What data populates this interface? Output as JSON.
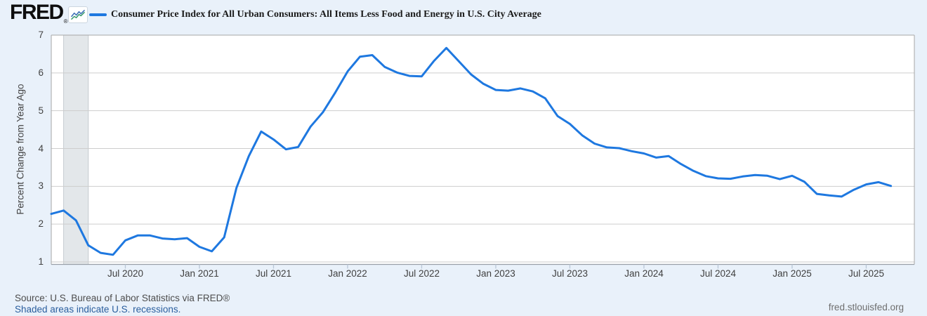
{
  "header": {
    "logo_text": "FRED",
    "logo_reg": "®",
    "series_title": "Consumer Price Index for All Urban Consumers: All Items Less Food and Energy in U.S. City Average"
  },
  "footer": {
    "source_line": "Source: U.S. Bureau of Labor Statistics via FRED®",
    "recession_note": "Shaded areas indicate U.S. recessions.",
    "site_url": "fred.stlouisfed.org"
  },
  "colors": {
    "line": "#1e78e0",
    "page_background": "#e9f1fa",
    "plot_background": "#ffffff",
    "gridline": "#cdcdcd",
    "plot_border": "#a6a6a6",
    "axis_bottom": "#989fa6",
    "tick_mark": "#b9c6d6",
    "recession_band": "#e3e7ea",
    "recession_band_edge": "#c6cbd0",
    "link_blue": "#2a5e9e",
    "axis_text": "#434343"
  },
  "chart_data": {
    "type": "line",
    "title": "Consumer Price Index for All Urban Consumers: All Items Less Food and Energy in U.S. City Average",
    "ylabel": "Percent Change from Year Ago",
    "xlabel": "",
    "legend_position": "top",
    "grid": "horizontal",
    "ylim": [
      0.935,
      7.0
    ],
    "yticks": [
      "7",
      "6",
      "5",
      "4",
      "3",
      "2",
      "1"
    ],
    "xlim_months": [
      0,
      69.9
    ],
    "x_start_label": "Jan 2020",
    "x_end_label": "Sep 2025",
    "xtick_labels": [
      "Jul 2020",
      "Jan 2021",
      "Jul 2021",
      "Jan 2022",
      "Jul 2022",
      "Jan 2023",
      "Jul 2023",
      "Jan 2024",
      "Jul 2024",
      "Jan 2025",
      "Jul 2025"
    ],
    "xtick_month_index": [
      6,
      12,
      18,
      24,
      30,
      36,
      42,
      48,
      54,
      60,
      66
    ],
    "recession_months": [
      1,
      3
    ],
    "recession_label": "Feb 2020 – Apr 2020 U.S. recession",
    "months": [
      "2020-01",
      "2020-02",
      "2020-03",
      "2020-04",
      "2020-05",
      "2020-06",
      "2020-07",
      "2020-08",
      "2020-09",
      "2020-10",
      "2020-11",
      "2020-12",
      "2021-01",
      "2021-02",
      "2021-03",
      "2021-04",
      "2021-05",
      "2021-06",
      "2021-07",
      "2021-08",
      "2021-09",
      "2021-10",
      "2021-11",
      "2021-12",
      "2022-01",
      "2022-02",
      "2022-03",
      "2022-04",
      "2022-05",
      "2022-06",
      "2022-07",
      "2022-08",
      "2022-09",
      "2022-10",
      "2022-11",
      "2022-12",
      "2023-01",
      "2023-02",
      "2023-03",
      "2023-04",
      "2023-05",
      "2023-06",
      "2023-07",
      "2023-08",
      "2023-09",
      "2023-10",
      "2023-11",
      "2023-12",
      "2024-01",
      "2024-02",
      "2024-03",
      "2024-04",
      "2024-05",
      "2024-06",
      "2024-07",
      "2024-08",
      "2024-09",
      "2024-10",
      "2024-11",
      "2024-12",
      "2025-01",
      "2025-02",
      "2025-03",
      "2025-04",
      "2025-05",
      "2025-06",
      "2025-07",
      "2025-08",
      "2025-09"
    ],
    "values": [
      2.27,
      2.36,
      2.1,
      1.44,
      1.24,
      1.19,
      1.57,
      1.7,
      1.7,
      1.62,
      1.6,
      1.63,
      1.4,
      1.28,
      1.65,
      2.96,
      3.8,
      4.45,
      4.24,
      3.98,
      4.04,
      4.58,
      4.96,
      5.48,
      6.04,
      6.43,
      6.47,
      6.16,
      6.01,
      5.92,
      5.91,
      6.32,
      6.66,
      6.31,
      5.96,
      5.71,
      5.55,
      5.53,
      5.59,
      5.51,
      5.33,
      4.86,
      4.65,
      4.35,
      4.13,
      4.03,
      4.01,
      3.93,
      3.87,
      3.76,
      3.8,
      3.59,
      3.41,
      3.27,
      3.21,
      3.2,
      3.26,
      3.3,
      3.28,
      3.19,
      3.28,
      3.12,
      2.8,
      2.76,
      2.73,
      2.91,
      3.05,
      3.11,
      3.01
    ]
  }
}
